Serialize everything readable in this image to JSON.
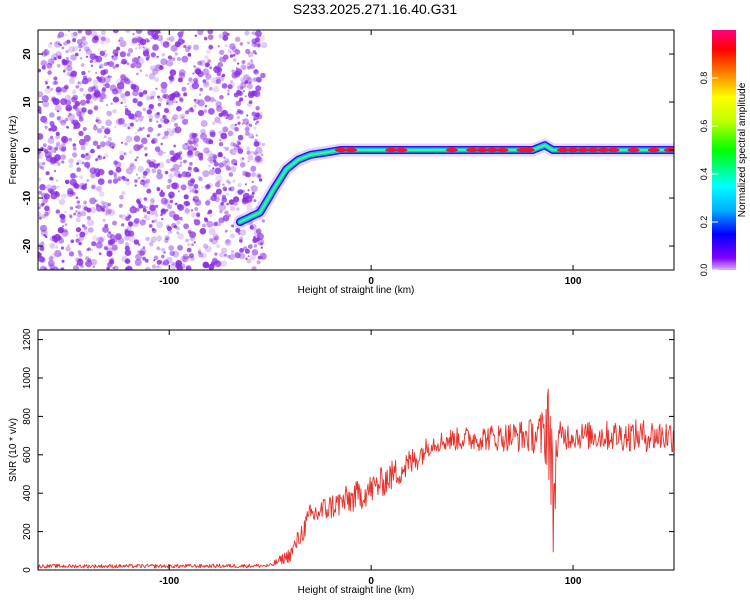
{
  "title": "S233.2025.271.16.40.G31",
  "colors": {
    "snr_line": "#e8302a",
    "scatter_fill": "#8a2be2",
    "track_outer": "#3a10e0",
    "track_mid": "#00c8ff",
    "track_peak": "#ff1020",
    "frame": "#000000"
  },
  "chart_data": [
    {
      "type": "heatmap",
      "title": "",
      "xlabel": "Height of straight line (km)",
      "ylabel": "Frequency (Hz)",
      "xlim": [
        -165,
        150
      ],
      "ylim": [
        -25,
        25
      ],
      "xticks": [
        -100,
        0,
        100
      ],
      "yticks": [
        -20,
        -10,
        0,
        10,
        20
      ],
      "colorbar": {
        "label": "Normalized spectral amplitude",
        "range": [
          0,
          1
        ],
        "ticks": [
          "0.0",
          "0.2",
          "0.4",
          "0.6",
          "0.8"
        ],
        "colormap": [
          "#e0b0ff",
          "#8000ff",
          "#0000ff",
          "#00b0ff",
          "#00ffff",
          "#00ff00",
          "#c0ff00",
          "#ffff00",
          "#ff8000",
          "#ff0000",
          "#ff0080"
        ]
      },
      "noise_region_x": [
        -165,
        -53
      ],
      "track": {
        "x": [
          -65,
          -55,
          -48,
          -42,
          -36,
          -30,
          -22,
          -15,
          0,
          20,
          40,
          60,
          80,
          86,
          90,
          100,
          120,
          150
        ],
        "freq": [
          -15,
          -13,
          -8,
          -4,
          -2,
          -1,
          -0.5,
          0,
          0,
          0,
          0,
          0,
          0,
          1,
          0,
          0,
          0,
          0
        ],
        "peak_x": [
          -15,
          -10,
          10,
          15,
          40,
          50,
          55,
          60,
          65,
          75,
          78,
          95,
          100,
          105,
          110,
          115,
          120,
          130,
          140,
          148
        ]
      },
      "grid": false
    },
    {
      "type": "line",
      "title": "",
      "xlabel": "Height of straight line (km)",
      "ylabel": "SNR (10 * v/v)",
      "xlim": [
        -165,
        150
      ],
      "ylim": [
        0,
        1250
      ],
      "xticks": [
        -100,
        0,
        100
      ],
      "yticks": [
        0,
        200,
        400,
        600,
        800,
        1000,
        1200
      ],
      "envelope": {
        "x": [
          -165,
          -100,
          -50,
          -40,
          -30,
          -20,
          -10,
          0,
          10,
          20,
          30,
          40,
          60,
          80,
          86,
          88,
          89,
          90,
          92,
          95,
          100,
          120,
          150
        ],
        "mean": [
          20,
          20,
          22,
          80,
          280,
          330,
          370,
          420,
          490,
          560,
          660,
          680,
          690,
          700,
          700,
          850,
          500,
          300,
          650,
          700,
          700,
          700,
          700
        ],
        "amplitude": [
          10,
          10,
          10,
          40,
          70,
          70,
          80,
          80,
          80,
          80,
          50,
          60,
          70,
          90,
          150,
          380,
          440,
          300,
          120,
          80,
          70,
          80,
          90
        ]
      },
      "grid": false,
      "legend": "none"
    }
  ]
}
